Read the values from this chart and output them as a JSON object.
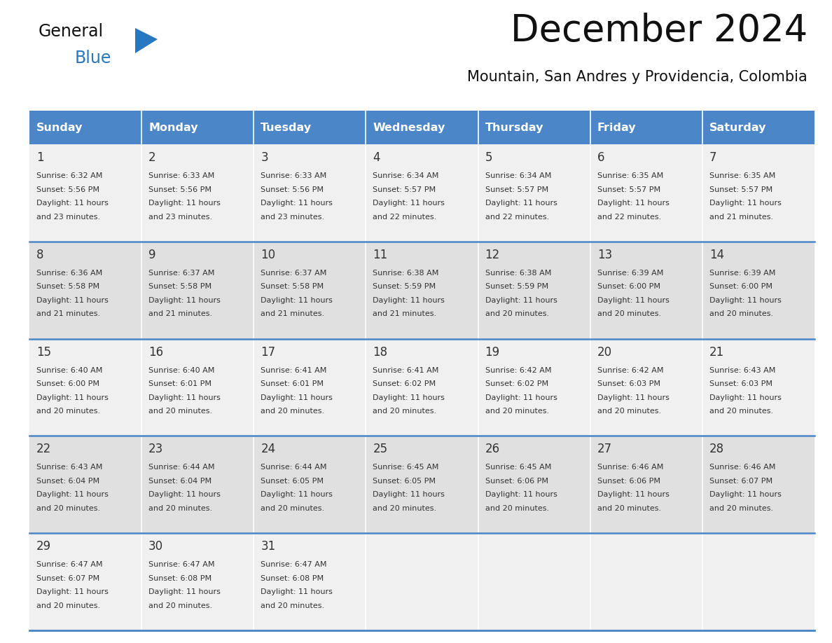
{
  "title": "December 2024",
  "subtitle": "Mountain, San Andres y Providencia, Colombia",
  "header_color": "#4a86c8",
  "header_text_color": "#ffffff",
  "bg_color": "#ffffff",
  "cell_bg_light": "#e8e8e8",
  "cell_bg_white": "#f5f5f5",
  "text_color": "#333333",
  "day_headers": [
    "Sunday",
    "Monday",
    "Tuesday",
    "Wednesday",
    "Thursday",
    "Friday",
    "Saturday"
  ],
  "days": [
    {
      "day": 1,
      "col": 0,
      "row": 0,
      "sunrise": "6:32 AM",
      "sunset": "5:56 PM",
      "daylight_h": "11 hours",
      "daylight_m": "and 23 minutes."
    },
    {
      "day": 2,
      "col": 1,
      "row": 0,
      "sunrise": "6:33 AM",
      "sunset": "5:56 PM",
      "daylight_h": "11 hours",
      "daylight_m": "and 23 minutes."
    },
    {
      "day": 3,
      "col": 2,
      "row": 0,
      "sunrise": "6:33 AM",
      "sunset": "5:56 PM",
      "daylight_h": "11 hours",
      "daylight_m": "and 23 minutes."
    },
    {
      "day": 4,
      "col": 3,
      "row": 0,
      "sunrise": "6:34 AM",
      "sunset": "5:57 PM",
      "daylight_h": "11 hours",
      "daylight_m": "and 22 minutes."
    },
    {
      "day": 5,
      "col": 4,
      "row": 0,
      "sunrise": "6:34 AM",
      "sunset": "5:57 PM",
      "daylight_h": "11 hours",
      "daylight_m": "and 22 minutes."
    },
    {
      "day": 6,
      "col": 5,
      "row": 0,
      "sunrise": "6:35 AM",
      "sunset": "5:57 PM",
      "daylight_h": "11 hours",
      "daylight_m": "and 22 minutes."
    },
    {
      "day": 7,
      "col": 6,
      "row": 0,
      "sunrise": "6:35 AM",
      "sunset": "5:57 PM",
      "daylight_h": "11 hours",
      "daylight_m": "and 21 minutes."
    },
    {
      "day": 8,
      "col": 0,
      "row": 1,
      "sunrise": "6:36 AM",
      "sunset": "5:58 PM",
      "daylight_h": "11 hours",
      "daylight_m": "and 21 minutes."
    },
    {
      "day": 9,
      "col": 1,
      "row": 1,
      "sunrise": "6:37 AM",
      "sunset": "5:58 PM",
      "daylight_h": "11 hours",
      "daylight_m": "and 21 minutes."
    },
    {
      "day": 10,
      "col": 2,
      "row": 1,
      "sunrise": "6:37 AM",
      "sunset": "5:58 PM",
      "daylight_h": "11 hours",
      "daylight_m": "and 21 minutes."
    },
    {
      "day": 11,
      "col": 3,
      "row": 1,
      "sunrise": "6:38 AM",
      "sunset": "5:59 PM",
      "daylight_h": "11 hours",
      "daylight_m": "and 21 minutes."
    },
    {
      "day": 12,
      "col": 4,
      "row": 1,
      "sunrise": "6:38 AM",
      "sunset": "5:59 PM",
      "daylight_h": "11 hours",
      "daylight_m": "and 20 minutes."
    },
    {
      "day": 13,
      "col": 5,
      "row": 1,
      "sunrise": "6:39 AM",
      "sunset": "6:00 PM",
      "daylight_h": "11 hours",
      "daylight_m": "and 20 minutes."
    },
    {
      "day": 14,
      "col": 6,
      "row": 1,
      "sunrise": "6:39 AM",
      "sunset": "6:00 PM",
      "daylight_h": "11 hours",
      "daylight_m": "and 20 minutes."
    },
    {
      "day": 15,
      "col": 0,
      "row": 2,
      "sunrise": "6:40 AM",
      "sunset": "6:00 PM",
      "daylight_h": "11 hours",
      "daylight_m": "and 20 minutes."
    },
    {
      "day": 16,
      "col": 1,
      "row": 2,
      "sunrise": "6:40 AM",
      "sunset": "6:01 PM",
      "daylight_h": "11 hours",
      "daylight_m": "and 20 minutes."
    },
    {
      "day": 17,
      "col": 2,
      "row": 2,
      "sunrise": "6:41 AM",
      "sunset": "6:01 PM",
      "daylight_h": "11 hours",
      "daylight_m": "and 20 minutes."
    },
    {
      "day": 18,
      "col": 3,
      "row": 2,
      "sunrise": "6:41 AM",
      "sunset": "6:02 PM",
      "daylight_h": "11 hours",
      "daylight_m": "and 20 minutes."
    },
    {
      "day": 19,
      "col": 4,
      "row": 2,
      "sunrise": "6:42 AM",
      "sunset": "6:02 PM",
      "daylight_h": "11 hours",
      "daylight_m": "and 20 minutes."
    },
    {
      "day": 20,
      "col": 5,
      "row": 2,
      "sunrise": "6:42 AM",
      "sunset": "6:03 PM",
      "daylight_h": "11 hours",
      "daylight_m": "and 20 minutes."
    },
    {
      "day": 21,
      "col": 6,
      "row": 2,
      "sunrise": "6:43 AM",
      "sunset": "6:03 PM",
      "daylight_h": "11 hours",
      "daylight_m": "and 20 minutes."
    },
    {
      "day": 22,
      "col": 0,
      "row": 3,
      "sunrise": "6:43 AM",
      "sunset": "6:04 PM",
      "daylight_h": "11 hours",
      "daylight_m": "and 20 minutes."
    },
    {
      "day": 23,
      "col": 1,
      "row": 3,
      "sunrise": "6:44 AM",
      "sunset": "6:04 PM",
      "daylight_h": "11 hours",
      "daylight_m": "and 20 minutes."
    },
    {
      "day": 24,
      "col": 2,
      "row": 3,
      "sunrise": "6:44 AM",
      "sunset": "6:05 PM",
      "daylight_h": "11 hours",
      "daylight_m": "and 20 minutes."
    },
    {
      "day": 25,
      "col": 3,
      "row": 3,
      "sunrise": "6:45 AM",
      "sunset": "6:05 PM",
      "daylight_h": "11 hours",
      "daylight_m": "and 20 minutes."
    },
    {
      "day": 26,
      "col": 4,
      "row": 3,
      "sunrise": "6:45 AM",
      "sunset": "6:06 PM",
      "daylight_h": "11 hours",
      "daylight_m": "and 20 minutes."
    },
    {
      "day": 27,
      "col": 5,
      "row": 3,
      "sunrise": "6:46 AM",
      "sunset": "6:06 PM",
      "daylight_h": "11 hours",
      "daylight_m": "and 20 minutes."
    },
    {
      "day": 28,
      "col": 6,
      "row": 3,
      "sunrise": "6:46 AM",
      "sunset": "6:07 PM",
      "daylight_h": "11 hours",
      "daylight_m": "and 20 minutes."
    },
    {
      "day": 29,
      "col": 0,
      "row": 4,
      "sunrise": "6:47 AM",
      "sunset": "6:07 PM",
      "daylight_h": "11 hours",
      "daylight_m": "and 20 minutes."
    },
    {
      "day": 30,
      "col": 1,
      "row": 4,
      "sunrise": "6:47 AM",
      "sunset": "6:08 PM",
      "daylight_h": "11 hours",
      "daylight_m": "and 20 minutes."
    },
    {
      "day": 31,
      "col": 2,
      "row": 4,
      "sunrise": "6:47 AM",
      "sunset": "6:08 PM",
      "daylight_h": "11 hours",
      "daylight_m": "and 20 minutes."
    }
  ]
}
